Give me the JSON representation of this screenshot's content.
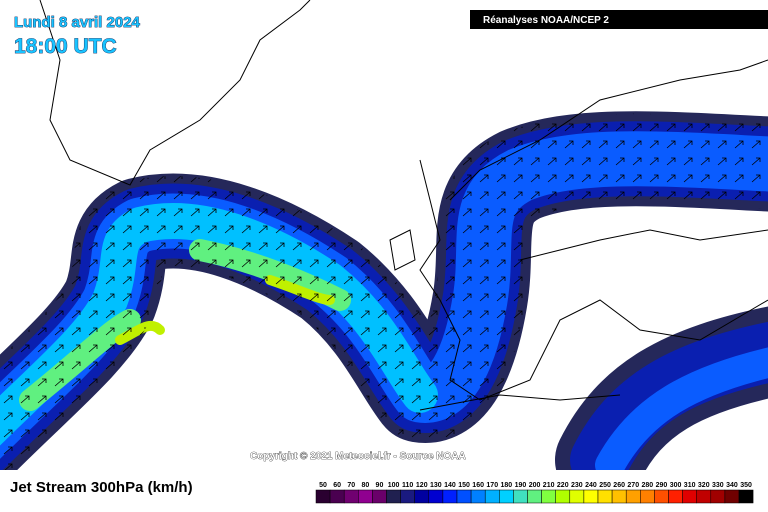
{
  "header": {
    "date": "Lundi 8 avril 2024",
    "time": "18:00 UTC",
    "source": "Réanalyses NOAA/NCEP 2"
  },
  "copyright": "Copyright © 2021 Meteociel.fr - Source NOAA",
  "map_title": "Jet Stream 300hPa (km/h)",
  "legend": {
    "values": [
      50,
      60,
      70,
      80,
      90,
      100,
      110,
      120,
      130,
      140,
      150,
      160,
      170,
      180,
      190,
      200,
      210,
      220,
      230,
      240,
      250,
      260,
      270,
      280,
      290,
      300,
      310,
      320,
      330,
      340,
      350
    ],
    "colors": [
      "#2a0030",
      "#4a0050",
      "#700070",
      "#900090",
      "#6a006a",
      "#202050",
      "#1a1a80",
      "#0000a0",
      "#0000d0",
      "#0020ff",
      "#0050ff",
      "#0080ff",
      "#00b0ff",
      "#00d0ff",
      "#40e0c0",
      "#60f080",
      "#80ff40",
      "#b0ff00",
      "#e0ff00",
      "#ffff00",
      "#ffe000",
      "#ffc000",
      "#ffa000",
      "#ff8000",
      "#ff5000",
      "#ff2000",
      "#e00000",
      "#c00000",
      "#a00000",
      "#700000",
      "#000000"
    ]
  }
}
